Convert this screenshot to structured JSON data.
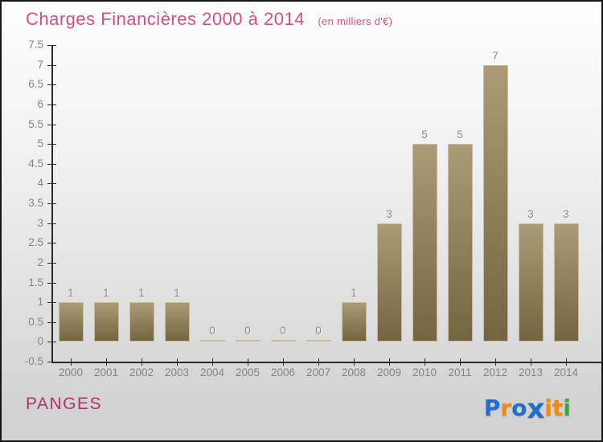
{
  "header": {
    "title": "Charges Financières 2000 à 2014",
    "subtitle": "(en milliers d'€)"
  },
  "chart_data": {
    "type": "bar",
    "title": "Charges Financières 2000 à 2014",
    "subtitle": "(en milliers d'€)",
    "categories": [
      "2000",
      "2001",
      "2002",
      "2003",
      "2004",
      "2005",
      "2006",
      "2007",
      "2008",
      "2009",
      "2010",
      "2011",
      "2012",
      "2013",
      "2014"
    ],
    "values": [
      1,
      1,
      1,
      1,
      0,
      0,
      0,
      0,
      1,
      3,
      5,
      5,
      7,
      3,
      3
    ],
    "xlabel": "",
    "ylabel": "",
    "ylim": [
      -0.5,
      7.5
    ],
    "ytick_step": 0.5,
    "grid": false,
    "legend": false,
    "value_labels": true
  },
  "footer": {
    "company": "PANGES",
    "logo": {
      "name": "Proxiti",
      "letters": [
        {
          "ch": "P",
          "color": "#1e6fd2",
          "big": false
        },
        {
          "ch": "r",
          "color": "#f28a10",
          "big": false
        },
        {
          "ch": "o",
          "color": "#1e6fd2",
          "big": false
        },
        {
          "ch": "x",
          "color": "#1e6fd2",
          "big": true
        },
        {
          "ch": "i",
          "color": "#f28a10",
          "big": false
        },
        {
          "ch": "t",
          "color": "#f28a10",
          "big": false
        },
        {
          "ch": "i",
          "color": "#35a93a",
          "big": false
        }
      ]
    }
  },
  "colors": {
    "title": "#d5517d",
    "brand": "#b23366",
    "bar_top": "#ab9b76",
    "bar_bottom": "#746542",
    "bar_border": "#c9bb97",
    "axis": "#2b2b2b",
    "tick_label": "#858585",
    "value_label": "#8a8a8a",
    "bg_top": "#fdfdfd",
    "bg_bottom": "#d2d2d2"
  }
}
